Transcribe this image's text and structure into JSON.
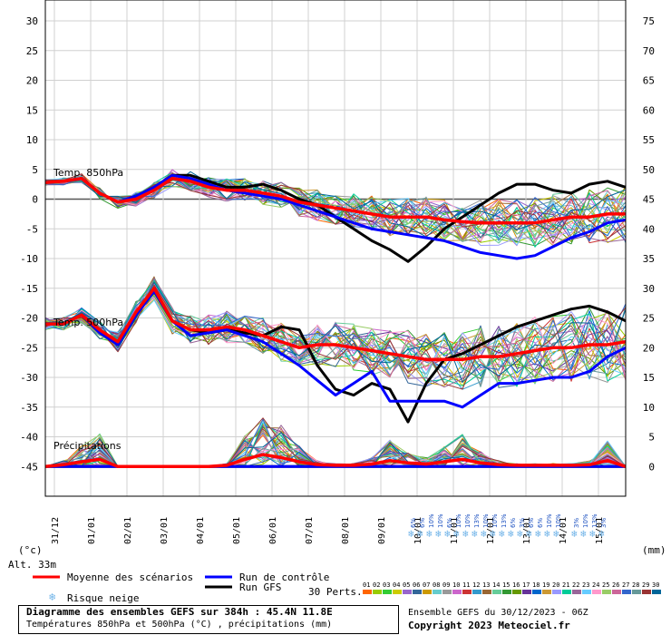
{
  "chart_data": {
    "type": "line",
    "title": "Diagramme des ensembles GEFS sur 384h : 45.4N 11.8E",
    "subtitle": "Températures 850hPa et 500hPa (°C) , précipitations (mm)",
    "left_axis_label": "(°c)",
    "right_axis_label": "(mm)",
    "altitude": "Alt. 33m",
    "left_ticks": [
      30,
      25,
      20,
      15,
      10,
      5,
      0,
      -5,
      -10,
      -15,
      -20,
      -25,
      -30,
      -35,
      -40,
      -45
    ],
    "right_ticks": [
      75,
      70,
      65,
      60,
      55,
      50,
      45,
      40,
      35,
      30,
      25,
      20,
      15,
      10,
      5,
      0
    ],
    "ylim": [
      -50,
      30
    ],
    "xlim_hours": [
      0,
      384
    ],
    "x_ticks": [
      "31/12",
      "01/01",
      "02/01",
      "03/01",
      "04/01",
      "05/01",
      "06/01",
      "07/01",
      "08/01",
      "09/01",
      "10/01",
      "11/01",
      "12/01",
      "13/01",
      "14/01",
      "15/01"
    ],
    "section_labels": [
      "Temp. 850hPa",
      "Temp. 500hPa",
      "Précipitations"
    ],
    "t850": {
      "x": [
        0,
        12,
        24,
        36,
        48,
        60,
        72,
        84,
        96,
        108,
        120,
        132,
        144,
        156,
        168,
        180,
        192,
        204,
        216,
        228,
        240,
        252,
        264,
        276,
        288,
        300,
        312,
        324,
        336,
        348,
        360,
        372,
        384
      ],
      "mean": [
        2.8,
        3.0,
        3.5,
        1.0,
        -0.5,
        0.0,
        1.5,
        3.5,
        3.0,
        2.0,
        1.5,
        1.5,
        1.0,
        0.5,
        -0.5,
        -1.0,
        -1.5,
        -2.0,
        -2.5,
        -3.0,
        -3.0,
        -3.0,
        -3.5,
        -3.8,
        -4.0,
        -4.0,
        -4.0,
        -4.0,
        -3.5,
        -3.0,
        -3.0,
        -2.5,
        -2.5
      ],
      "control": [
        2.8,
        3.0,
        3.5,
        1.0,
        -0.5,
        0.5,
        2.0,
        4.0,
        3.5,
        2.5,
        1.5,
        1.0,
        0.5,
        0.0,
        -1.0,
        -2.0,
        -3.0,
        -4.0,
        -5.0,
        -5.5,
        -6.0,
        -6.5,
        -7.0,
        -8.0,
        -9.0,
        -9.5,
        -10.0,
        -9.5,
        -8.0,
        -6.5,
        -5.5,
        -4.0,
        -3.5
      ],
      "gfs": [
        2.8,
        3.0,
        3.5,
        1.0,
        -0.5,
        0.5,
        2.0,
        4.0,
        4.0,
        3.0,
        2.0,
        2.0,
        2.5,
        1.5,
        0.0,
        -1.0,
        -3.0,
        -5.0,
        -7.0,
        -8.5,
        -10.5,
        -8.0,
        -5.0,
        -3.0,
        -1.0,
        1.0,
        2.5,
        2.5,
        1.5,
        1.0,
        2.5,
        3.0,
        2.0
      ]
    },
    "t500": {
      "x": [
        0,
        12,
        24,
        36,
        48,
        60,
        72,
        84,
        96,
        108,
        120,
        132,
        144,
        156,
        168,
        180,
        192,
        204,
        216,
        228,
        240,
        252,
        264,
        276,
        288,
        300,
        312,
        324,
        336,
        348,
        360,
        372,
        384
      ],
      "mean": [
        -21.0,
        -21.0,
        -19.5,
        -22.0,
        -24.0,
        -19.0,
        -15.0,
        -20.5,
        -22.0,
        -22.0,
        -21.5,
        -22.0,
        -23.0,
        -24.0,
        -25.0,
        -24.5,
        -24.5,
        -25.0,
        -25.5,
        -26.0,
        -26.5,
        -27.0,
        -27.0,
        -27.0,
        -26.5,
        -26.5,
        -26.0,
        -25.5,
        -25.0,
        -25.0,
        -24.5,
        -24.5,
        -24.0
      ],
      "control": [
        -21.0,
        -21.0,
        -19.5,
        -22.5,
        -24.5,
        -19.5,
        -15.5,
        -20.5,
        -23.0,
        -22.5,
        -22.0,
        -23.0,
        -24.0,
        -26.0,
        -28.0,
        -30.5,
        -33.0,
        -31.0,
        -29.0,
        -34.0,
        -34.0,
        -34.0,
        -34.0,
        -35.0,
        -33.0,
        -31.0,
        -31.0,
        -30.5,
        -30.0,
        -30.0,
        -29.0,
        -26.5,
        -25.0
      ],
      "gfs": [
        -21.0,
        -21.0,
        -19.5,
        -22.5,
        -24.5,
        -19.5,
        -15.5,
        -20.5,
        -22.0,
        -22.5,
        -22.0,
        -22.5,
        -23.0,
        -21.5,
        -22.0,
        -28.0,
        -32.0,
        -33.0,
        -31.0,
        -32.0,
        -37.5,
        -31.0,
        -27.0,
        -26.0,
        -24.5,
        -23.0,
        -21.5,
        -20.5,
        -19.5,
        -18.5,
        -18.0,
        -19.0,
        -20.5
      ]
    },
    "precip": {
      "x": [
        0,
        12,
        24,
        36,
        48,
        60,
        72,
        84,
        96,
        108,
        120,
        132,
        144,
        156,
        168,
        180,
        192,
        204,
        216,
        228,
        240,
        252,
        264,
        276,
        288,
        300,
        312,
        324,
        336,
        348,
        360,
        372,
        384
      ],
      "mean_mm": [
        0,
        0.3,
        0.8,
        1.2,
        0,
        0,
        0,
        0,
        0,
        0,
        0.2,
        1.2,
        2.0,
        1.5,
        0.8,
        0.3,
        0.2,
        0.2,
        0.4,
        1.0,
        0.6,
        0.4,
        0.8,
        1.2,
        0.6,
        0.3,
        0.2,
        0.2,
        0.2,
        0.2,
        0.3,
        1.0,
        0
      ],
      "control_mm": [
        0,
        0,
        0,
        0,
        0,
        0,
        0,
        0,
        0,
        0,
        0,
        0,
        0,
        0,
        0,
        0,
        0,
        0,
        0,
        0,
        0,
        0,
        0,
        0,
        0,
        0,
        0,
        0,
        0,
        0,
        0,
        0,
        0
      ],
      "gfs_mm": [
        0,
        0,
        0,
        0,
        0,
        0,
        0,
        0,
        0,
        0,
        0,
        0,
        0,
        0,
        0,
        0,
        0,
        0,
        0,
        0,
        0,
        0,
        0,
        0,
        0,
        0,
        0,
        0,
        0,
        0,
        0,
        0,
        0
      ]
    },
    "snow_risk": [
      {
        "hour": 243,
        "pct": "6%"
      },
      {
        "hour": 249,
        "pct": "6%"
      },
      {
        "hour": 255,
        "pct": "10%"
      },
      {
        "hour": 261,
        "pct": "10%"
      },
      {
        "hour": 267,
        "pct": "6%"
      },
      {
        "hour": 273,
        "pct": "10%"
      },
      {
        "hour": 279,
        "pct": "10%"
      },
      {
        "hour": 285,
        "pct": "13%"
      },
      {
        "hour": 291,
        "pct": "10%"
      },
      {
        "hour": 297,
        "pct": "10%"
      },
      {
        "hour": 303,
        "pct": "13%"
      },
      {
        "hour": 309,
        "pct": "6%"
      },
      {
        "hour": 315,
        "pct": "3%"
      },
      {
        "hour": 321,
        "pct": "6%"
      },
      {
        "hour": 327,
        "pct": "6%"
      },
      {
        "hour": 333,
        "pct": "10%"
      },
      {
        "hour": 339,
        "pct": "10%"
      },
      {
        "hour": 351,
        "pct": "3%"
      },
      {
        "hour": 357,
        "pct": "10%"
      },
      {
        "hour": 363,
        "pct": "13%"
      },
      {
        "hour": 369,
        "pct": "3%"
      }
    ],
    "legend": {
      "mean": "Moyenne des scénarios",
      "control": "Run de contrôle",
      "gfs": "Run GFS",
      "perts": "30 Perts.",
      "snow": "Risque neige",
      "pert_labels": [
        "01",
        "02",
        "03",
        "04",
        "05",
        "06",
        "07",
        "08",
        "09",
        "10",
        "11",
        "12",
        "13",
        "14",
        "15",
        "16",
        "17",
        "18",
        "19",
        "20",
        "21",
        "22",
        "23",
        "24",
        "25",
        "26",
        "27",
        "28",
        "29",
        "30"
      ]
    },
    "colors": {
      "mean": "#ff0000",
      "control": "#0000ff",
      "gfs": "#000000",
      "pert_palette": [
        "#ff6600",
        "#99cc00",
        "#33cc33",
        "#cccc00",
        "#9966cc",
        "#336699",
        "#cc9900",
        "#66cccc",
        "#999999",
        "#cc66cc",
        "#cc3333",
        "#3399cc",
        "#996633",
        "#66cc99",
        "#339933",
        "#669900",
        "#663399",
        "#0066cc",
        "#cc9933",
        "#9999ff",
        "#00cc99",
        "#996699",
        "#66ccff",
        "#ff99cc",
        "#99cc66",
        "#cc6699",
        "#3366cc",
        "#669999",
        "#993333",
        "#006699"
      ]
    }
  },
  "info": {
    "ensemble": "Ensemble GEFS du 30/12/2023 - 06Z",
    "copyright": "Copyright 2023 Meteociel.fr"
  }
}
